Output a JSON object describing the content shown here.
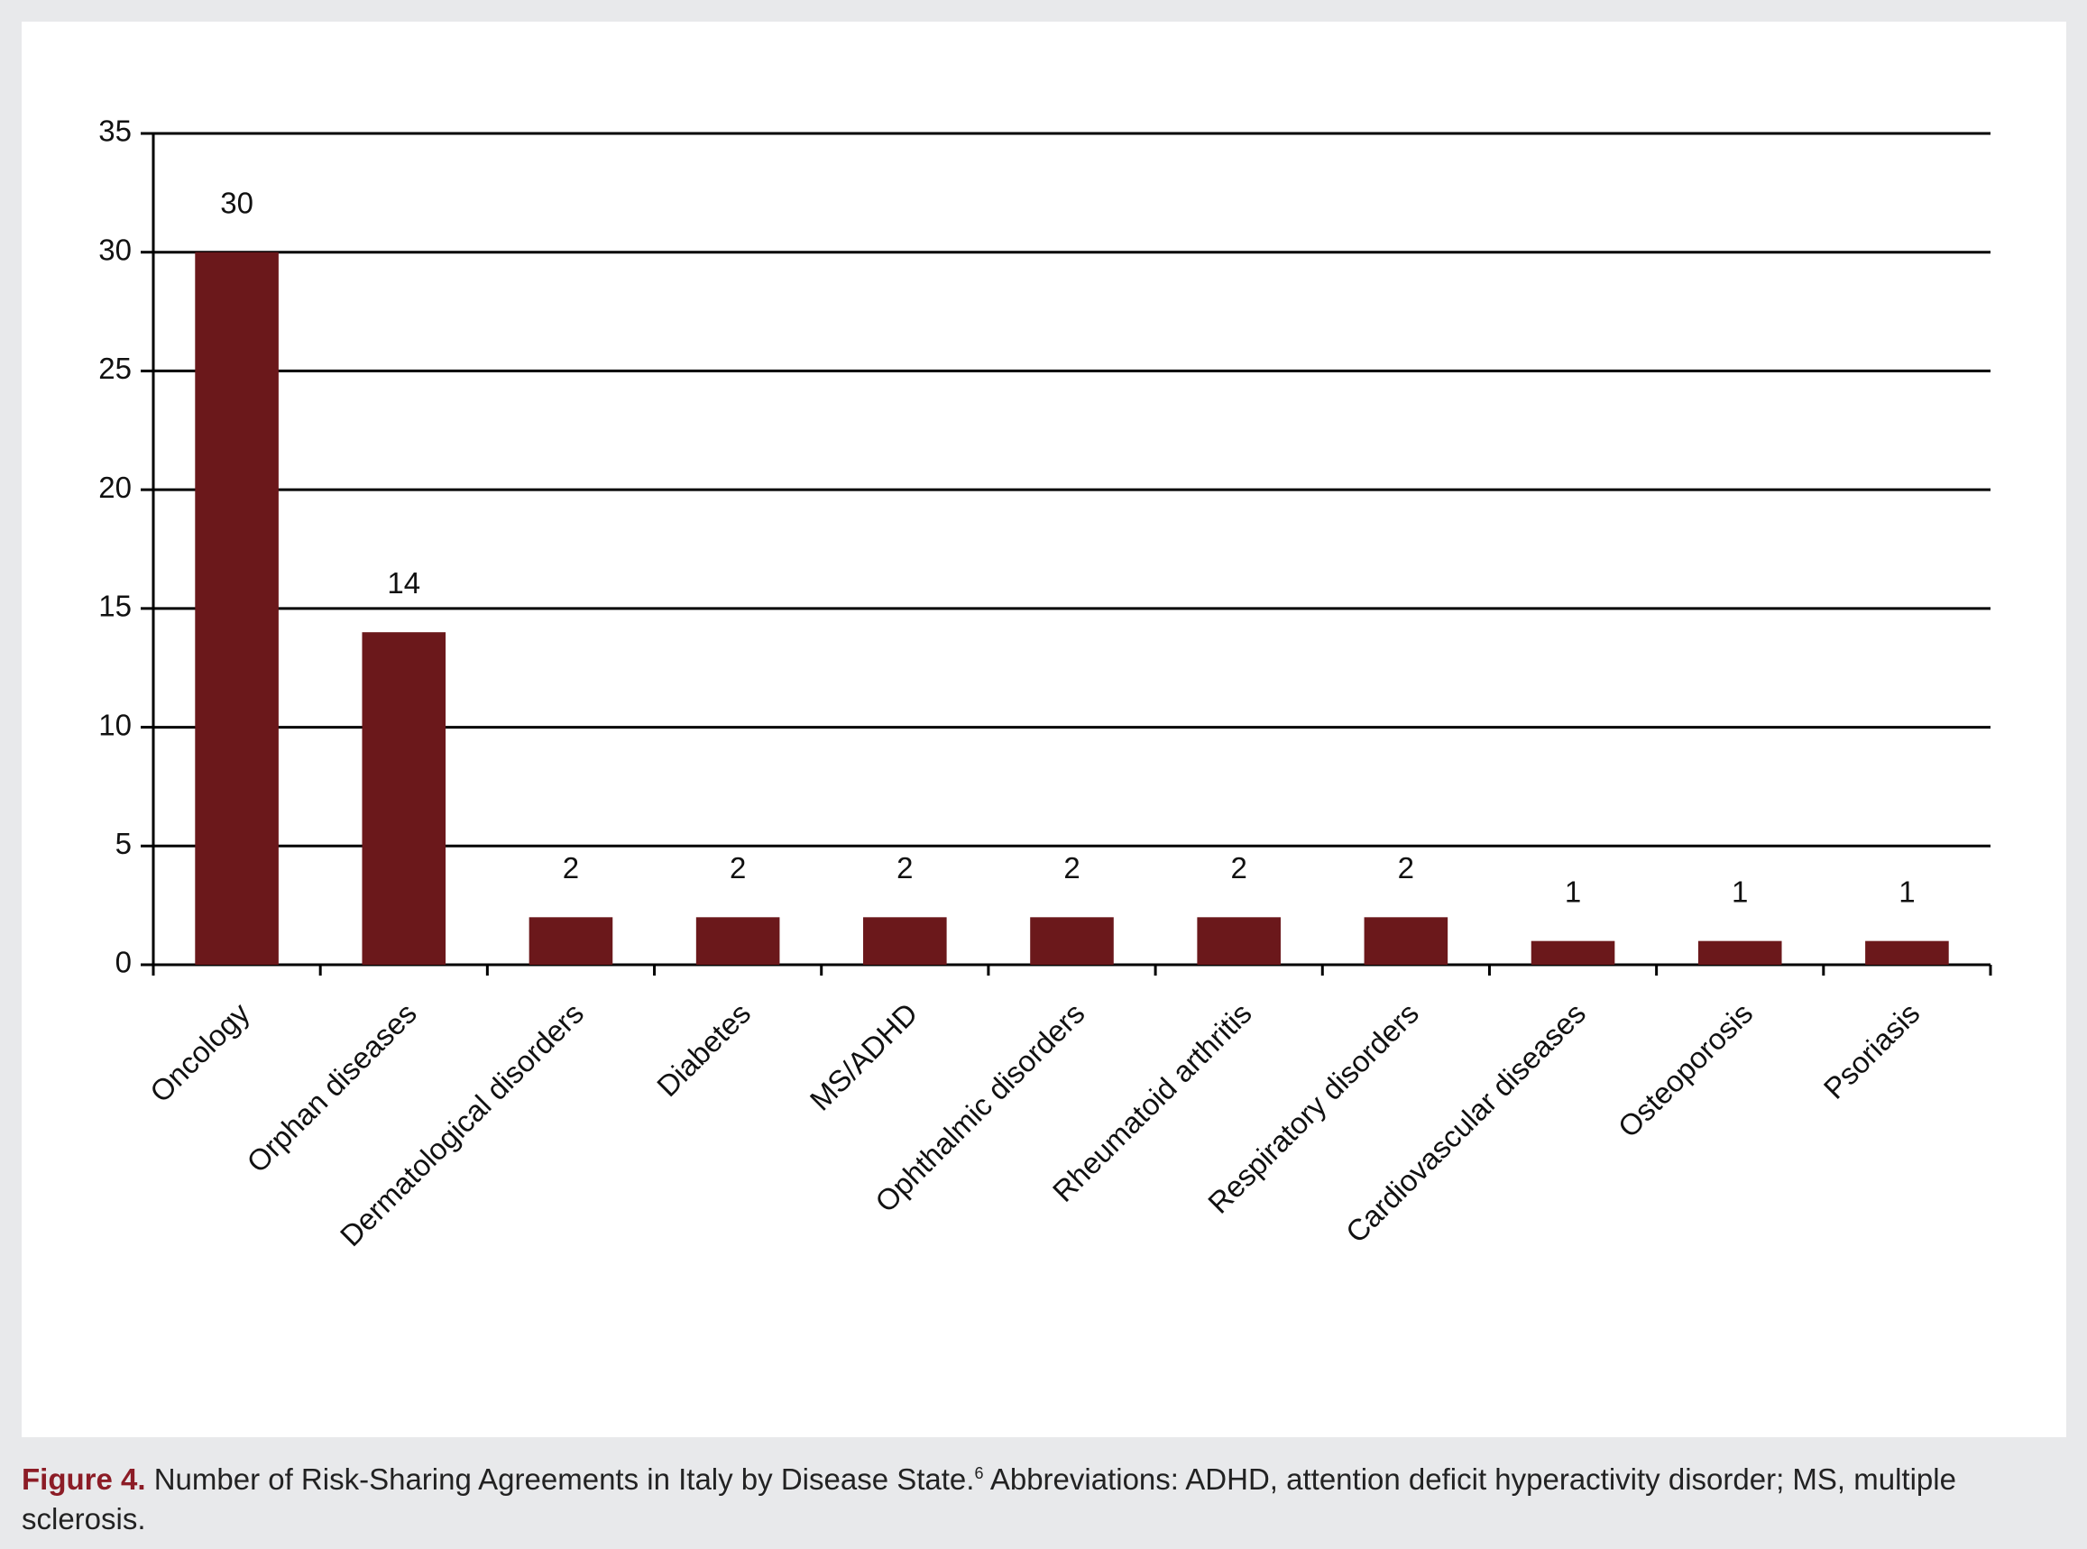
{
  "chart_data": {
    "type": "bar",
    "categories": [
      "Oncology",
      "Orphan diseases",
      "Dermatological disorders",
      "Diabetes",
      "MS/ADHD",
      "Ophthalmic disorders",
      "Rheumatoid arthritis",
      "Respiratory disorders",
      "Cardiovascular diseases",
      "Osteoporosis",
      "Psoriasis"
    ],
    "values": [
      30,
      14,
      2,
      2,
      2,
      2,
      2,
      2,
      1,
      1,
      1
    ],
    "color": "#6b181b",
    "ylim": [
      0,
      35
    ],
    "yticks": [
      0,
      5,
      10,
      15,
      20,
      25,
      30,
      35
    ],
    "grid": true,
    "caption_label": "Figure 4.",
    "caption": "Number of Risk-Sharing Agreements in Italy by Disease State.",
    "caption_ref": "6",
    "caption_note": "Abbreviations: ADHD, attention deficit hyperactivity disorder; MS, multiple sclerosis."
  }
}
